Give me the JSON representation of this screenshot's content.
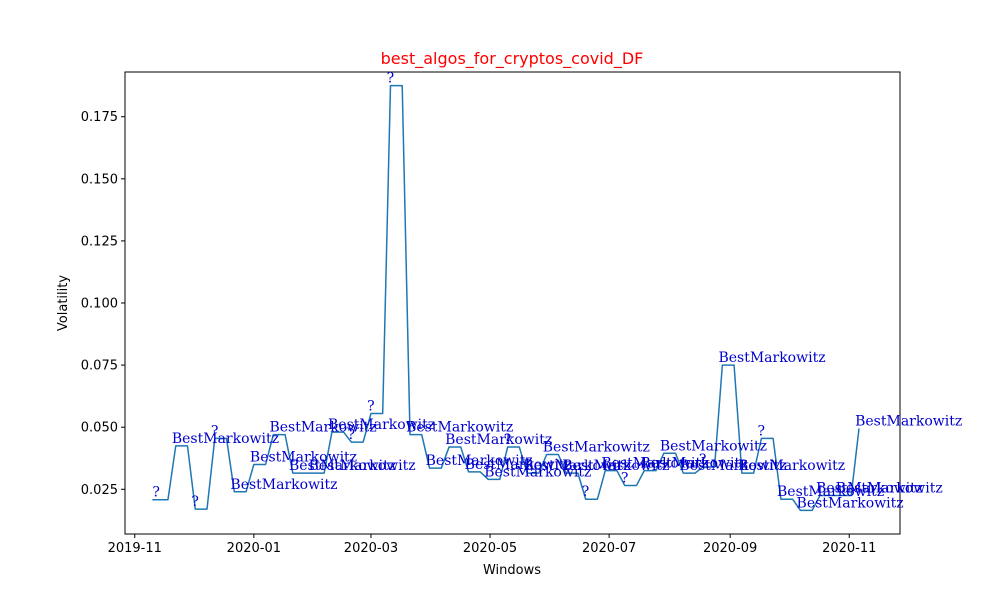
{
  "chart_data": {
    "type": "line",
    "title": "best_algos_for_cryptos_covid_DF",
    "xlabel": "Windows",
    "ylabel": "Volatility",
    "xlim": [
      "2019-10-27",
      "2020-11-27"
    ],
    "ylim": [
      0.007,
      0.193
    ],
    "x_ticks": [
      "2019-11-01",
      "2020-01-01",
      "2020-03-01",
      "2020-05-01",
      "2020-07-01",
      "2020-09-01",
      "2020-11-01"
    ],
    "x_tick_labels": [
      "2019-11",
      "2020-01",
      "2020-03",
      "2020-05",
      "2020-07",
      "2020-09",
      "2020-11"
    ],
    "y_ticks": [
      0.025,
      0.05,
      0.075,
      0.1,
      0.125,
      0.15,
      0.175
    ],
    "y_tick_labels": [
      "0.025",
      "0.050",
      "0.075",
      "0.100",
      "0.125",
      "0.150",
      "0.175"
    ],
    "grid": false,
    "series": [
      {
        "step": "post",
        "points": [
          {
            "x": "2019-11-10",
            "y": 0.0208,
            "label": "?"
          },
          {
            "x": "2019-11-20",
            "y": 0.0425,
            "label": "BestMarkowitz"
          },
          {
            "x": "2019-11-30",
            "y": 0.017,
            "label": "?"
          },
          {
            "x": "2019-12-10",
            "y": 0.0455,
            "label": "?"
          },
          {
            "x": "2019-12-20",
            "y": 0.024,
            "label": "BestMarkowitz"
          },
          {
            "x": "2019-12-30",
            "y": 0.035,
            "label": "BestMarkowitz"
          },
          {
            "x": "2020-01-09",
            "y": 0.047,
            "label": "BestMarkowitz"
          },
          {
            "x": "2020-01-19",
            "y": 0.0315,
            "label": "BestMarkowitz"
          },
          {
            "x": "2020-01-29",
            "y": 0.0315,
            "label": "BestMarkowitz"
          },
          {
            "x": "2020-02-08",
            "y": 0.048,
            "label": "BestMarkowitz"
          },
          {
            "x": "2020-02-18",
            "y": 0.044,
            "label": "?"
          },
          {
            "x": "2020-02-28",
            "y": 0.0555,
            "label": "?"
          },
          {
            "x": "2020-03-09",
            "y": 0.1875,
            "label": "?"
          },
          {
            "x": "2020-03-19",
            "y": 0.047,
            "label": "BestMarkowitz"
          },
          {
            "x": "2020-03-29",
            "y": 0.0335,
            "label": "BestMarkowitz"
          },
          {
            "x": "2020-04-08",
            "y": 0.042,
            "label": "BestMarkowitz"
          },
          {
            "x": "2020-04-18",
            "y": 0.032,
            "label": "BestMarkowitz"
          },
          {
            "x": "2020-04-28",
            "y": 0.029,
            "label": "BestMarkowitz"
          },
          {
            "x": "2020-05-08",
            "y": 0.042,
            "label": "?"
          },
          {
            "x": "2020-05-18",
            "y": 0.0315,
            "label": "BestMarkowitz"
          },
          {
            "x": "2020-05-28",
            "y": 0.039,
            "label": "BestMarkowitz"
          },
          {
            "x": "2020-06-07",
            "y": 0.0315,
            "label": "BestMarkowitz"
          },
          {
            "x": "2020-06-17",
            "y": 0.021,
            "label": "?"
          },
          {
            "x": "2020-06-27",
            "y": 0.0325,
            "label": "BestMarkowitz"
          },
          {
            "x": "2020-07-07",
            "y": 0.0265,
            "label": "?"
          },
          {
            "x": "2020-07-17",
            "y": 0.0325,
            "label": "BestMarkowitz"
          },
          {
            "x": "2020-07-27",
            "y": 0.0395,
            "label": "BestMarkowitz"
          },
          {
            "x": "2020-08-06",
            "y": 0.0315,
            "label": "BestMarkowitz"
          },
          {
            "x": "2020-08-16",
            "y": 0.034,
            "label": "?"
          },
          {
            "x": "2020-08-26",
            "y": 0.075,
            "label": "BestMarkowitz"
          },
          {
            "x": "2020-09-05",
            "y": 0.0315,
            "label": "BestMarkowitz"
          },
          {
            "x": "2020-09-15",
            "y": 0.0455,
            "label": "?"
          },
          {
            "x": "2020-09-25",
            "y": 0.021,
            "label": "BestMarkowitz"
          },
          {
            "x": "2020-10-05",
            "y": 0.0165,
            "label": "BestMarkowitz"
          },
          {
            "x": "2020-10-15",
            "y": 0.0225,
            "label": "BestMarkowitz"
          },
          {
            "x": "2020-10-25",
            "y": 0.0225,
            "label": "BestMarkowitz"
          },
          {
            "x": "2020-11-04",
            "y": 0.0495,
            "label": "BestMarkowitz"
          }
        ]
      }
    ],
    "colors": {
      "line": "#1f77b4",
      "annotation": "#0000cd",
      "title": "#ff0000",
      "axes": "#000000"
    }
  }
}
